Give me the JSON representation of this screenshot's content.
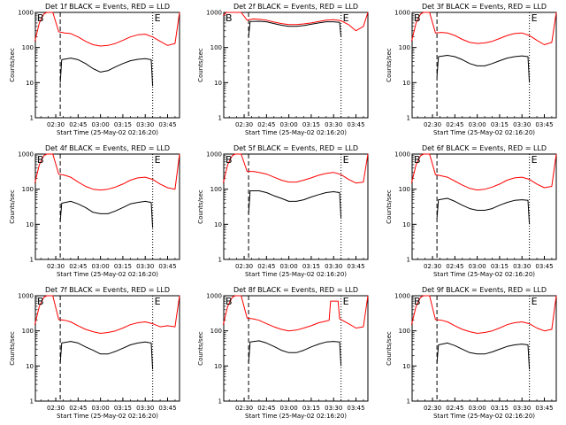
{
  "figure": {
    "common": {
      "xlabel": "Start Time (25-May-02 02:16:20)",
      "ylabel": "Counts/sec",
      "y_ticks": [
        "1",
        "10",
        "100",
        "1000"
      ],
      "x_ticks": [
        "02:30",
        "02:45",
        "03:00",
        "03:15",
        "03:30",
        "03:45"
      ],
      "start_marker": "B",
      "end_marker": "E",
      "colors": {
        "events": "#000000",
        "lld": "#ff0000"
      }
    },
    "panels": [
      {
        "title": "Det 1f BLACK = Events, RED = LLD"
      },
      {
        "title": "Det 2f BLACK = Events, RED = LLD"
      },
      {
        "title": "Det 3f BLACK = Events, RED = LLD"
      },
      {
        "title": "Det 4f BLACK = Events, RED = LLD"
      },
      {
        "title": "Det 5f BLACK = Events, RED = LLD"
      },
      {
        "title": "Det 6f BLACK = Events, RED = LLD"
      },
      {
        "title": "Det 7f BLACK = Events, RED = LLD"
      },
      {
        "title": "Det 8f BLACK = Events, RED = LLD"
      },
      {
        "title": "Det 9f BLACK = Events, RED = LLD"
      }
    ]
  },
  "chart_data": [
    {
      "type": "line",
      "title": "Det 1f BLACK = Events, RED = LLD",
      "xlabel": "Start Time (25-May-02 02:16:20)",
      "ylabel": "Counts/sec",
      "yscale": "log",
      "ylim": [
        1,
        1000
      ],
      "xlim": [
        "02:16:20",
        "03:53:00"
      ],
      "series": [
        {
          "color": "#ff0000",
          "x": [
            "02:16",
            "02:19",
            "02:22",
            "02:24",
            "02:26",
            "02:28",
            "02:32",
            "02:36",
            "02:40",
            "02:45",
            "02:50",
            "02:55",
            "03:00",
            "03:05",
            "03:10",
            "03:15",
            "03:20",
            "03:25",
            "03:30",
            "03:35",
            "03:40",
            "03:45",
            "03:50",
            "03:53"
          ],
          "y": [
            150,
            500,
            900,
            1000,
            1000,
            1000,
            280,
            260,
            250,
            200,
            150,
            120,
            110,
            115,
            130,
            160,
            200,
            230,
            240,
            200,
            150,
            115,
            130,
            1000
          ]
        },
        {
          "color": "#000000",
          "x": [
            "02:33",
            "02:34",
            "02:40",
            "02:45",
            "02:50",
            "02:55",
            "03:00",
            "03:05",
            "03:10",
            "03:15",
            "03:20",
            "03:25",
            "03:30",
            "03:34",
            "03:35"
          ],
          "y": [
            10,
            45,
            50,
            45,
            35,
            25,
            20,
            22,
            28,
            35,
            42,
            46,
            48,
            45,
            8
          ]
        }
      ]
    },
    {
      "type": "line",
      "title": "Det 2f BLACK = Events, RED = LLD",
      "xlabel": "Start Time (25-May-02 02:16:20)",
      "ylabel": "Counts/sec",
      "yscale": "log",
      "ylim": [
        1,
        1000
      ],
      "xlim": [
        "02:16:20",
        "03:53:00"
      ],
      "series": [
        {
          "color": "#ff0000",
          "x": [
            "02:16",
            "02:18",
            "02:20",
            "02:24",
            "02:26",
            "02:28",
            "02:32",
            "02:36",
            "02:40",
            "02:45",
            "02:50",
            "02:55",
            "03:00",
            "03:05",
            "03:10",
            "03:15",
            "03:20",
            "03:25",
            "03:30",
            "03:35",
            "03:40",
            "03:45",
            "03:50",
            "03:53"
          ],
          "y": [
            800,
            1000,
            1000,
            1000,
            1000,
            1000,
            600,
            650,
            640,
            600,
            530,
            480,
            450,
            450,
            470,
            500,
            550,
            600,
            620,
            580,
            450,
            300,
            400,
            1000
          ]
        },
        {
          "color": "#000000",
          "x": [
            "02:33",
            "02:34",
            "02:40",
            "02:45",
            "02:50",
            "02:55",
            "03:00",
            "03:05",
            "03:10",
            "03:15",
            "03:20",
            "03:25",
            "03:30",
            "03:34",
            "03:35"
          ],
          "y": [
            200,
            550,
            560,
            540,
            480,
            430,
            400,
            400,
            420,
            460,
            500,
            540,
            540,
            520,
            200
          ]
        }
      ]
    },
    {
      "type": "line",
      "title": "Det 3f BLACK = Events, RED = LLD",
      "xlabel": "Start Time (25-May-02 02:16:20)",
      "ylabel": "Counts/sec",
      "yscale": "log",
      "ylim": [
        1,
        1000
      ],
      "xlim": [
        "02:16:20",
        "03:53:00"
      ],
      "series": [
        {
          "color": "#ff0000",
          "x": [
            "02:16",
            "02:19",
            "02:22",
            "02:24",
            "02:26",
            "02:28",
            "02:32",
            "02:36",
            "02:40",
            "02:45",
            "02:50",
            "02:55",
            "03:00",
            "03:05",
            "03:10",
            "03:15",
            "03:20",
            "03:25",
            "03:30",
            "03:35",
            "03:40",
            "03:45",
            "03:50",
            "03:53"
          ],
          "y": [
            150,
            500,
            900,
            1000,
            1000,
            1000,
            260,
            270,
            260,
            220,
            170,
            140,
            130,
            135,
            150,
            180,
            220,
            250,
            260,
            220,
            160,
            120,
            140,
            1000
          ]
        },
        {
          "color": "#000000",
          "x": [
            "02:33",
            "02:34",
            "02:40",
            "02:45",
            "02:50",
            "02:55",
            "03:00",
            "03:05",
            "03:10",
            "03:15",
            "03:20",
            "03:25",
            "03:30",
            "03:34",
            "03:35"
          ],
          "y": [
            15,
            55,
            60,
            55,
            45,
            35,
            30,
            30,
            35,
            42,
            50,
            55,
            58,
            55,
            10
          ]
        }
      ]
    },
    {
      "type": "line",
      "title": "Det 4f BLACK = Events, RED = LLD",
      "xlabel": "Start Time (25-May-02 02:16:20)",
      "ylabel": "Counts/sec",
      "yscale": "log",
      "ylim": [
        1,
        1000
      ],
      "xlim": [
        "02:16:20",
        "03:53:00"
      ],
      "series": [
        {
          "color": "#ff0000",
          "x": [
            "02:16",
            "02:19",
            "02:22",
            "02:24",
            "02:26",
            "02:28",
            "02:32",
            "02:36",
            "02:40",
            "02:45",
            "02:50",
            "02:55",
            "03:00",
            "03:05",
            "03:10",
            "03:15",
            "03:20",
            "03:25",
            "03:30",
            "03:35",
            "03:40",
            "03:45",
            "03:50",
            "03:53"
          ],
          "y": [
            150,
            500,
            900,
            1000,
            1000,
            1000,
            270,
            250,
            220,
            160,
            120,
            100,
            95,
            100,
            115,
            140,
            180,
            210,
            220,
            190,
            140,
            110,
            100,
            1000
          ]
        },
        {
          "color": "#000000",
          "x": [
            "02:33",
            "02:34",
            "02:40",
            "02:45",
            "02:50",
            "02:55",
            "03:00",
            "03:05",
            "03:10",
            "03:15",
            "03:20",
            "03:25",
            "03:30",
            "03:34",
            "03:35"
          ],
          "y": [
            12,
            40,
            45,
            38,
            30,
            22,
            20,
            20,
            24,
            30,
            38,
            42,
            45,
            42,
            8
          ]
        }
      ]
    },
    {
      "type": "line",
      "title": "Det 5f BLACK = Events, RED = LLD",
      "xlabel": "Start Time (25-May-02 02:16:20)",
      "ylabel": "Counts/sec",
      "yscale": "log",
      "ylim": [
        1,
        1000
      ],
      "xlim": [
        "02:16:20",
        "03:53:00"
      ],
      "series": [
        {
          "color": "#ff0000",
          "x": [
            "02:16",
            "02:19",
            "02:22",
            "02:24",
            "02:26",
            "02:28",
            "02:32",
            "02:36",
            "02:40",
            "02:45",
            "02:50",
            "02:55",
            "03:00",
            "03:05",
            "03:10",
            "03:15",
            "03:20",
            "03:25",
            "03:30",
            "03:35",
            "03:40",
            "03:45",
            "03:50",
            "03:53"
          ],
          "y": [
            150,
            500,
            900,
            1000,
            1000,
            1000,
            320,
            320,
            300,
            270,
            220,
            180,
            160,
            160,
            180,
            210,
            250,
            280,
            300,
            260,
            190,
            150,
            160,
            1000
          ]
        },
        {
          "color": "#000000",
          "x": [
            "02:33",
            "02:34",
            "02:40",
            "02:45",
            "02:50",
            "02:55",
            "03:00",
            "03:05",
            "03:10",
            "03:15",
            "03:20",
            "03:25",
            "03:30",
            "03:34",
            "03:35"
          ],
          "y": [
            20,
            90,
            90,
            80,
            65,
            55,
            45,
            45,
            50,
            60,
            70,
            80,
            85,
            80,
            15
          ]
        }
      ]
    },
    {
      "type": "line",
      "title": "Det 6f BLACK = Events, RED = LLD",
      "xlabel": "Start Time (25-May-02 02:16:20)",
      "ylabel": "Counts/sec",
      "yscale": "log",
      "ylim": [
        1,
        1000
      ],
      "xlim": [
        "02:16:20",
        "03:53:00"
      ],
      "series": [
        {
          "color": "#ff0000",
          "x": [
            "02:16",
            "02:19",
            "02:22",
            "02:24",
            "02:26",
            "02:28",
            "02:32",
            "02:36",
            "02:40",
            "02:45",
            "02:50",
            "02:55",
            "03:00",
            "03:05",
            "03:10",
            "03:15",
            "03:20",
            "03:25",
            "03:30",
            "03:35",
            "03:40",
            "03:45",
            "03:50",
            "03:53"
          ],
          "y": [
            150,
            500,
            900,
            1000,
            1000,
            1000,
            260,
            240,
            220,
            170,
            130,
            105,
            95,
            100,
            115,
            140,
            180,
            210,
            220,
            190,
            140,
            110,
            120,
            1000
          ]
        },
        {
          "color": "#000000",
          "x": [
            "02:33",
            "02:34",
            "02:40",
            "02:45",
            "02:50",
            "02:55",
            "03:00",
            "03:05",
            "03:10",
            "03:15",
            "03:20",
            "03:25",
            "03:30",
            "03:34",
            "03:35"
          ],
          "y": [
            15,
            50,
            55,
            45,
            35,
            28,
            25,
            25,
            28,
            35,
            42,
            48,
            50,
            48,
            10
          ]
        }
      ]
    },
    {
      "type": "line",
      "title": "Det 7f BLACK = Events, RED = LLD",
      "xlabel": "Start Time (25-May-02 02:16:20)",
      "ylabel": "Counts/sec",
      "yscale": "log",
      "ylim": [
        1,
        1000
      ],
      "xlim": [
        "02:16:20",
        "03:53:00"
      ],
      "series": [
        {
          "color": "#ff0000",
          "x": [
            "02:16",
            "02:19",
            "02:22",
            "02:24",
            "02:26",
            "02:28",
            "02:32",
            "02:36",
            "02:40",
            "02:45",
            "02:50",
            "02:55",
            "03:00",
            "03:05",
            "03:10",
            "03:15",
            "03:20",
            "03:25",
            "03:30",
            "03:35",
            "03:40",
            "03:45",
            "03:50",
            "03:53"
          ],
          "y": [
            150,
            500,
            900,
            1000,
            1000,
            1000,
            210,
            200,
            180,
            140,
            110,
            95,
            85,
            90,
            100,
            120,
            150,
            170,
            180,
            160,
            130,
            140,
            130,
            1000
          ]
        },
        {
          "color": "#000000",
          "x": [
            "02:33",
            "02:34",
            "02:40",
            "02:45",
            "02:50",
            "02:55",
            "03:00",
            "03:05",
            "03:10",
            "03:15",
            "03:20",
            "03:25",
            "03:30",
            "03:34",
            "03:35"
          ],
          "y": [
            12,
            45,
            50,
            45,
            35,
            28,
            22,
            22,
            26,
            32,
            40,
            45,
            48,
            45,
            8
          ]
        }
      ]
    },
    {
      "type": "line",
      "title": "Det 8f BLACK = Events, RED = LLD",
      "xlabel": "Start Time (25-May-02 02:16:20)",
      "ylabel": "Counts/sec",
      "yscale": "log",
      "ylim": [
        1,
        1000
      ],
      "xlim": [
        "02:16:20",
        "03:53:00"
      ],
      "series": [
        {
          "color": "#ff0000",
          "x": [
            "02:16",
            "02:19",
            "02:22",
            "02:24",
            "02:26",
            "02:28",
            "02:32",
            "02:36",
            "02:40",
            "02:45",
            "02:50",
            "02:55",
            "03:00",
            "03:05",
            "03:10",
            "03:15",
            "03:20",
            "03:25",
            "03:27",
            "03:28",
            "03:33",
            "03:34",
            "03:40",
            "03:45",
            "03:50",
            "03:53"
          ],
          "y": [
            150,
            500,
            900,
            1000,
            1000,
            1000,
            230,
            220,
            200,
            160,
            130,
            110,
            100,
            105,
            120,
            140,
            170,
            190,
            200,
            700,
            700,
            220,
            160,
            120,
            130,
            1000
          ]
        },
        {
          "color": "#000000",
          "x": [
            "02:33",
            "02:34",
            "02:40",
            "02:45",
            "02:50",
            "02:55",
            "03:00",
            "03:05",
            "03:10",
            "03:15",
            "03:20",
            "03:25",
            "03:30",
            "03:34",
            "03:35"
          ],
          "y": [
            12,
            48,
            52,
            45,
            36,
            28,
            24,
            24,
            28,
            35,
            42,
            48,
            50,
            48,
            10
          ]
        }
      ]
    },
    {
      "type": "line",
      "title": "Det 9f BLACK = Events, RED = LLD",
      "xlabel": "Start Time (25-May-02 02:16:20)",
      "ylabel": "Counts/sec",
      "yscale": "log",
      "ylim": [
        1,
        1000
      ],
      "xlim": [
        "02:16:20",
        "03:53:00"
      ],
      "series": [
        {
          "color": "#ff0000",
          "x": [
            "02:16",
            "02:19",
            "02:22",
            "02:24",
            "02:26",
            "02:28",
            "02:32",
            "02:36",
            "02:40",
            "02:45",
            "02:50",
            "02:55",
            "03:00",
            "03:05",
            "03:10",
            "03:15",
            "03:20",
            "03:25",
            "03:30",
            "03:35",
            "03:40",
            "03:45",
            "03:50",
            "03:53"
          ],
          "y": [
            150,
            500,
            900,
            1000,
            1000,
            1000,
            210,
            200,
            180,
            140,
            110,
            95,
            85,
            90,
            100,
            120,
            150,
            170,
            180,
            160,
            120,
            100,
            110,
            1000
          ]
        },
        {
          "color": "#000000",
          "x": [
            "02:33",
            "02:34",
            "02:40",
            "02:45",
            "02:50",
            "02:55",
            "03:00",
            "03:05",
            "03:10",
            "03:15",
            "03:20",
            "03:25",
            "03:30",
            "03:34",
            "03:35"
          ],
          "y": [
            12,
            40,
            45,
            38,
            30,
            24,
            22,
            22,
            25,
            30,
            36,
            40,
            42,
            40,
            8
          ]
        }
      ]
    }
  ]
}
